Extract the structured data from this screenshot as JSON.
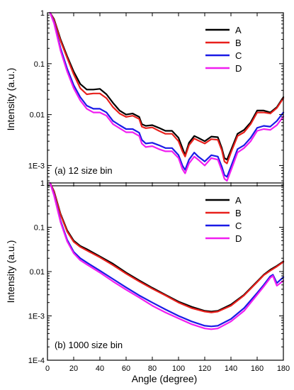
{
  "colors": {
    "A": "#000000",
    "B": "#e8201c",
    "C": "#1a1ae6",
    "D": "#f01ef0"
  },
  "chart_data": [
    {
      "type": "line",
      "panel_label": "(a) 12 size bin",
      "xlabel": "",
      "ylabel": "Intensity (a.u.)",
      "x_scale": "linear",
      "y_scale": "log",
      "xlim": [
        0,
        180
      ],
      "ylim": [
        0.0004,
        1
      ],
      "x_ticks": [
        0,
        20,
        40,
        60,
        80,
        100,
        120,
        140,
        160,
        180
      ],
      "x_tick_labels": [
        "",
        "",
        "",
        "",
        "",
        "",
        "",
        "",
        "",
        ""
      ],
      "y_ticks": [
        1,
        0.1,
        0.01,
        0.001
      ],
      "y_tick_labels": [
        "1",
        "0.1",
        "0.01",
        "1E-3"
      ],
      "legend_position": "top-right",
      "series": [
        {
          "name": "A",
          "color": "#000000",
          "x": [
            2,
            5,
            10,
            15,
            20,
            25,
            30,
            35,
            40,
            45,
            50,
            55,
            60,
            65,
            70,
            72,
            75,
            80,
            85,
            90,
            95,
            100,
            103,
            105,
            108,
            112,
            115,
            120,
            125,
            130,
            133,
            135,
            137,
            140,
            145,
            150,
            155,
            160,
            165,
            170,
            175,
            180
          ],
          "y": [
            1,
            0.75,
            0.3,
            0.14,
            0.07,
            0.04,
            0.031,
            0.031,
            0.032,
            0.025,
            0.017,
            0.012,
            0.01,
            0.0105,
            0.009,
            0.0065,
            0.006,
            0.0062,
            0.0055,
            0.0048,
            0.0048,
            0.0035,
            0.0022,
            0.0016,
            0.0028,
            0.0038,
            0.0035,
            0.003,
            0.0037,
            0.0036,
            0.0022,
            0.0014,
            0.0013,
            0.002,
            0.0042,
            0.005,
            0.007,
            0.012,
            0.012,
            0.011,
            0.014,
            0.022
          ]
        },
        {
          "name": "B",
          "color": "#e8201c",
          "x": [
            2,
            5,
            10,
            15,
            20,
            25,
            30,
            35,
            40,
            45,
            50,
            55,
            60,
            65,
            70,
            72,
            75,
            80,
            85,
            90,
            95,
            100,
            103,
            105,
            108,
            112,
            115,
            120,
            125,
            130,
            133,
            135,
            137,
            140,
            145,
            150,
            155,
            160,
            165,
            170,
            175,
            180
          ],
          "y": [
            1,
            0.72,
            0.28,
            0.13,
            0.062,
            0.033,
            0.025,
            0.026,
            0.026,
            0.021,
            0.014,
            0.0105,
            0.009,
            0.0095,
            0.0082,
            0.0058,
            0.0054,
            0.0056,
            0.0048,
            0.0042,
            0.0042,
            0.003,
            0.0019,
            0.0015,
            0.0025,
            0.0034,
            0.0031,
            0.0027,
            0.0033,
            0.0032,
            0.002,
            0.0012,
            0.0011,
            0.0018,
            0.0038,
            0.0045,
            0.0065,
            0.011,
            0.011,
            0.0105,
            0.0135,
            0.021
          ]
        },
        {
          "name": "C",
          "color": "#1a1ae6",
          "x": [
            2,
            5,
            10,
            15,
            20,
            25,
            30,
            35,
            40,
            45,
            50,
            55,
            60,
            65,
            70,
            72,
            75,
            80,
            85,
            90,
            95,
            100,
            103,
            105,
            108,
            112,
            115,
            120,
            125,
            130,
            133,
            135,
            137,
            140,
            145,
            150,
            155,
            160,
            165,
            170,
            175,
            180
          ],
          "y": [
            1,
            0.65,
            0.2,
            0.08,
            0.038,
            0.022,
            0.015,
            0.013,
            0.013,
            0.011,
            0.0075,
            0.0062,
            0.0052,
            0.0052,
            0.0044,
            0.0032,
            0.0027,
            0.0028,
            0.0025,
            0.0022,
            0.0022,
            0.0016,
            0.001,
            0.00082,
            0.0013,
            0.0018,
            0.0015,
            0.0012,
            0.0016,
            0.0015,
            0.00095,
            0.00065,
            0.0006,
            0.00095,
            0.0021,
            0.0025,
            0.0035,
            0.0055,
            0.006,
            0.0058,
            0.0075,
            0.011
          ]
        },
        {
          "name": "D",
          "color": "#f01ef0",
          "x": [
            2,
            5,
            10,
            15,
            20,
            25,
            30,
            35,
            40,
            45,
            50,
            55,
            60,
            65,
            70,
            72,
            75,
            80,
            85,
            90,
            95,
            100,
            103,
            105,
            108,
            112,
            115,
            120,
            125,
            130,
            133,
            135,
            137,
            140,
            145,
            150,
            155,
            160,
            165,
            170,
            175,
            180
          ],
          "y": [
            1,
            0.62,
            0.18,
            0.07,
            0.033,
            0.019,
            0.013,
            0.011,
            0.011,
            0.0095,
            0.0065,
            0.0054,
            0.0045,
            0.0045,
            0.0038,
            0.0027,
            0.0023,
            0.0024,
            0.0021,
            0.0019,
            0.0019,
            0.0014,
            0.00085,
            0.0007,
            0.0011,
            0.0015,
            0.0013,
            0.001,
            0.0014,
            0.0013,
            0.0008,
            0.00055,
            0.0005,
            0.0008,
            0.0018,
            0.0022,
            0.003,
            0.0048,
            0.0052,
            0.005,
            0.0062,
            0.0092
          ]
        }
      ]
    },
    {
      "type": "line",
      "panel_label": "(b) 1000 size bin",
      "xlabel": "Angle (degree)",
      "ylabel": "Intensity (a.u.)",
      "x_scale": "linear",
      "y_scale": "log",
      "xlim": [
        0,
        180
      ],
      "ylim": [
        0.0001,
        1
      ],
      "x_ticks": [
        0,
        20,
        40,
        60,
        80,
        100,
        120,
        140,
        160,
        180
      ],
      "x_tick_labels": [
        "0",
        "20",
        "40",
        "60",
        "80",
        "100",
        "120",
        "140",
        "160",
        "180"
      ],
      "y_ticks": [
        1,
        0.1,
        0.01,
        0.001,
        0.0001
      ],
      "y_tick_labels": [
        "1",
        "0.1",
        "0.01",
        "1E-3",
        "1E-4"
      ],
      "legend_position": "top-right",
      "series": [
        {
          "name": "A",
          "color": "#000000",
          "x": [
            2,
            5,
            10,
            15,
            20,
            25,
            30,
            40,
            50,
            60,
            70,
            80,
            90,
            100,
            110,
            120,
            125,
            130,
            140,
            150,
            160,
            165,
            170,
            175,
            180
          ],
          "y": [
            1,
            0.65,
            0.2,
            0.085,
            0.05,
            0.038,
            0.032,
            0.022,
            0.015,
            0.0095,
            0.0063,
            0.0043,
            0.003,
            0.0021,
            0.0016,
            0.0013,
            0.00125,
            0.0013,
            0.0018,
            0.003,
            0.006,
            0.0085,
            0.011,
            0.0135,
            0.017
          ]
        },
        {
          "name": "B",
          "color": "#e8201c",
          "x": [
            2,
            5,
            10,
            15,
            20,
            25,
            30,
            40,
            50,
            60,
            70,
            80,
            90,
            100,
            110,
            120,
            125,
            130,
            140,
            150,
            160,
            165,
            170,
            175,
            180
          ],
          "y": [
            1,
            0.63,
            0.19,
            0.08,
            0.047,
            0.036,
            0.03,
            0.021,
            0.014,
            0.009,
            0.006,
            0.0041,
            0.0029,
            0.002,
            0.0015,
            0.00125,
            0.0012,
            0.00125,
            0.0017,
            0.0029,
            0.0058,
            0.0083,
            0.0105,
            0.013,
            0.0165
          ]
        },
        {
          "name": "C",
          "color": "#1a1ae6",
          "x": [
            2,
            5,
            10,
            15,
            20,
            25,
            30,
            40,
            50,
            60,
            70,
            80,
            90,
            100,
            110,
            120,
            125,
            130,
            140,
            150,
            160,
            165,
            170,
            172,
            175,
            180
          ],
          "y": [
            1,
            0.55,
            0.14,
            0.052,
            0.028,
            0.02,
            0.016,
            0.0105,
            0.0068,
            0.0044,
            0.0029,
            0.002,
            0.0014,
            0.001,
            0.00075,
            0.0006,
            0.00058,
            0.0006,
            0.00085,
            0.0015,
            0.0033,
            0.005,
            0.0078,
            0.0085,
            0.0055,
            0.0075
          ]
        },
        {
          "name": "D",
          "color": "#f01ef0",
          "x": [
            2,
            5,
            10,
            15,
            20,
            25,
            30,
            40,
            50,
            60,
            70,
            80,
            90,
            100,
            110,
            120,
            125,
            130,
            140,
            150,
            160,
            165,
            170,
            172,
            175,
            180
          ],
          "y": [
            1,
            0.52,
            0.13,
            0.048,
            0.026,
            0.018,
            0.0145,
            0.0095,
            0.006,
            0.0039,
            0.0026,
            0.0017,
            0.0012,
            0.00088,
            0.00065,
            0.00052,
            0.0005,
            0.00052,
            0.00075,
            0.0013,
            0.003,
            0.0046,
            0.0072,
            0.008,
            0.0048,
            0.0062
          ]
        }
      ]
    }
  ]
}
